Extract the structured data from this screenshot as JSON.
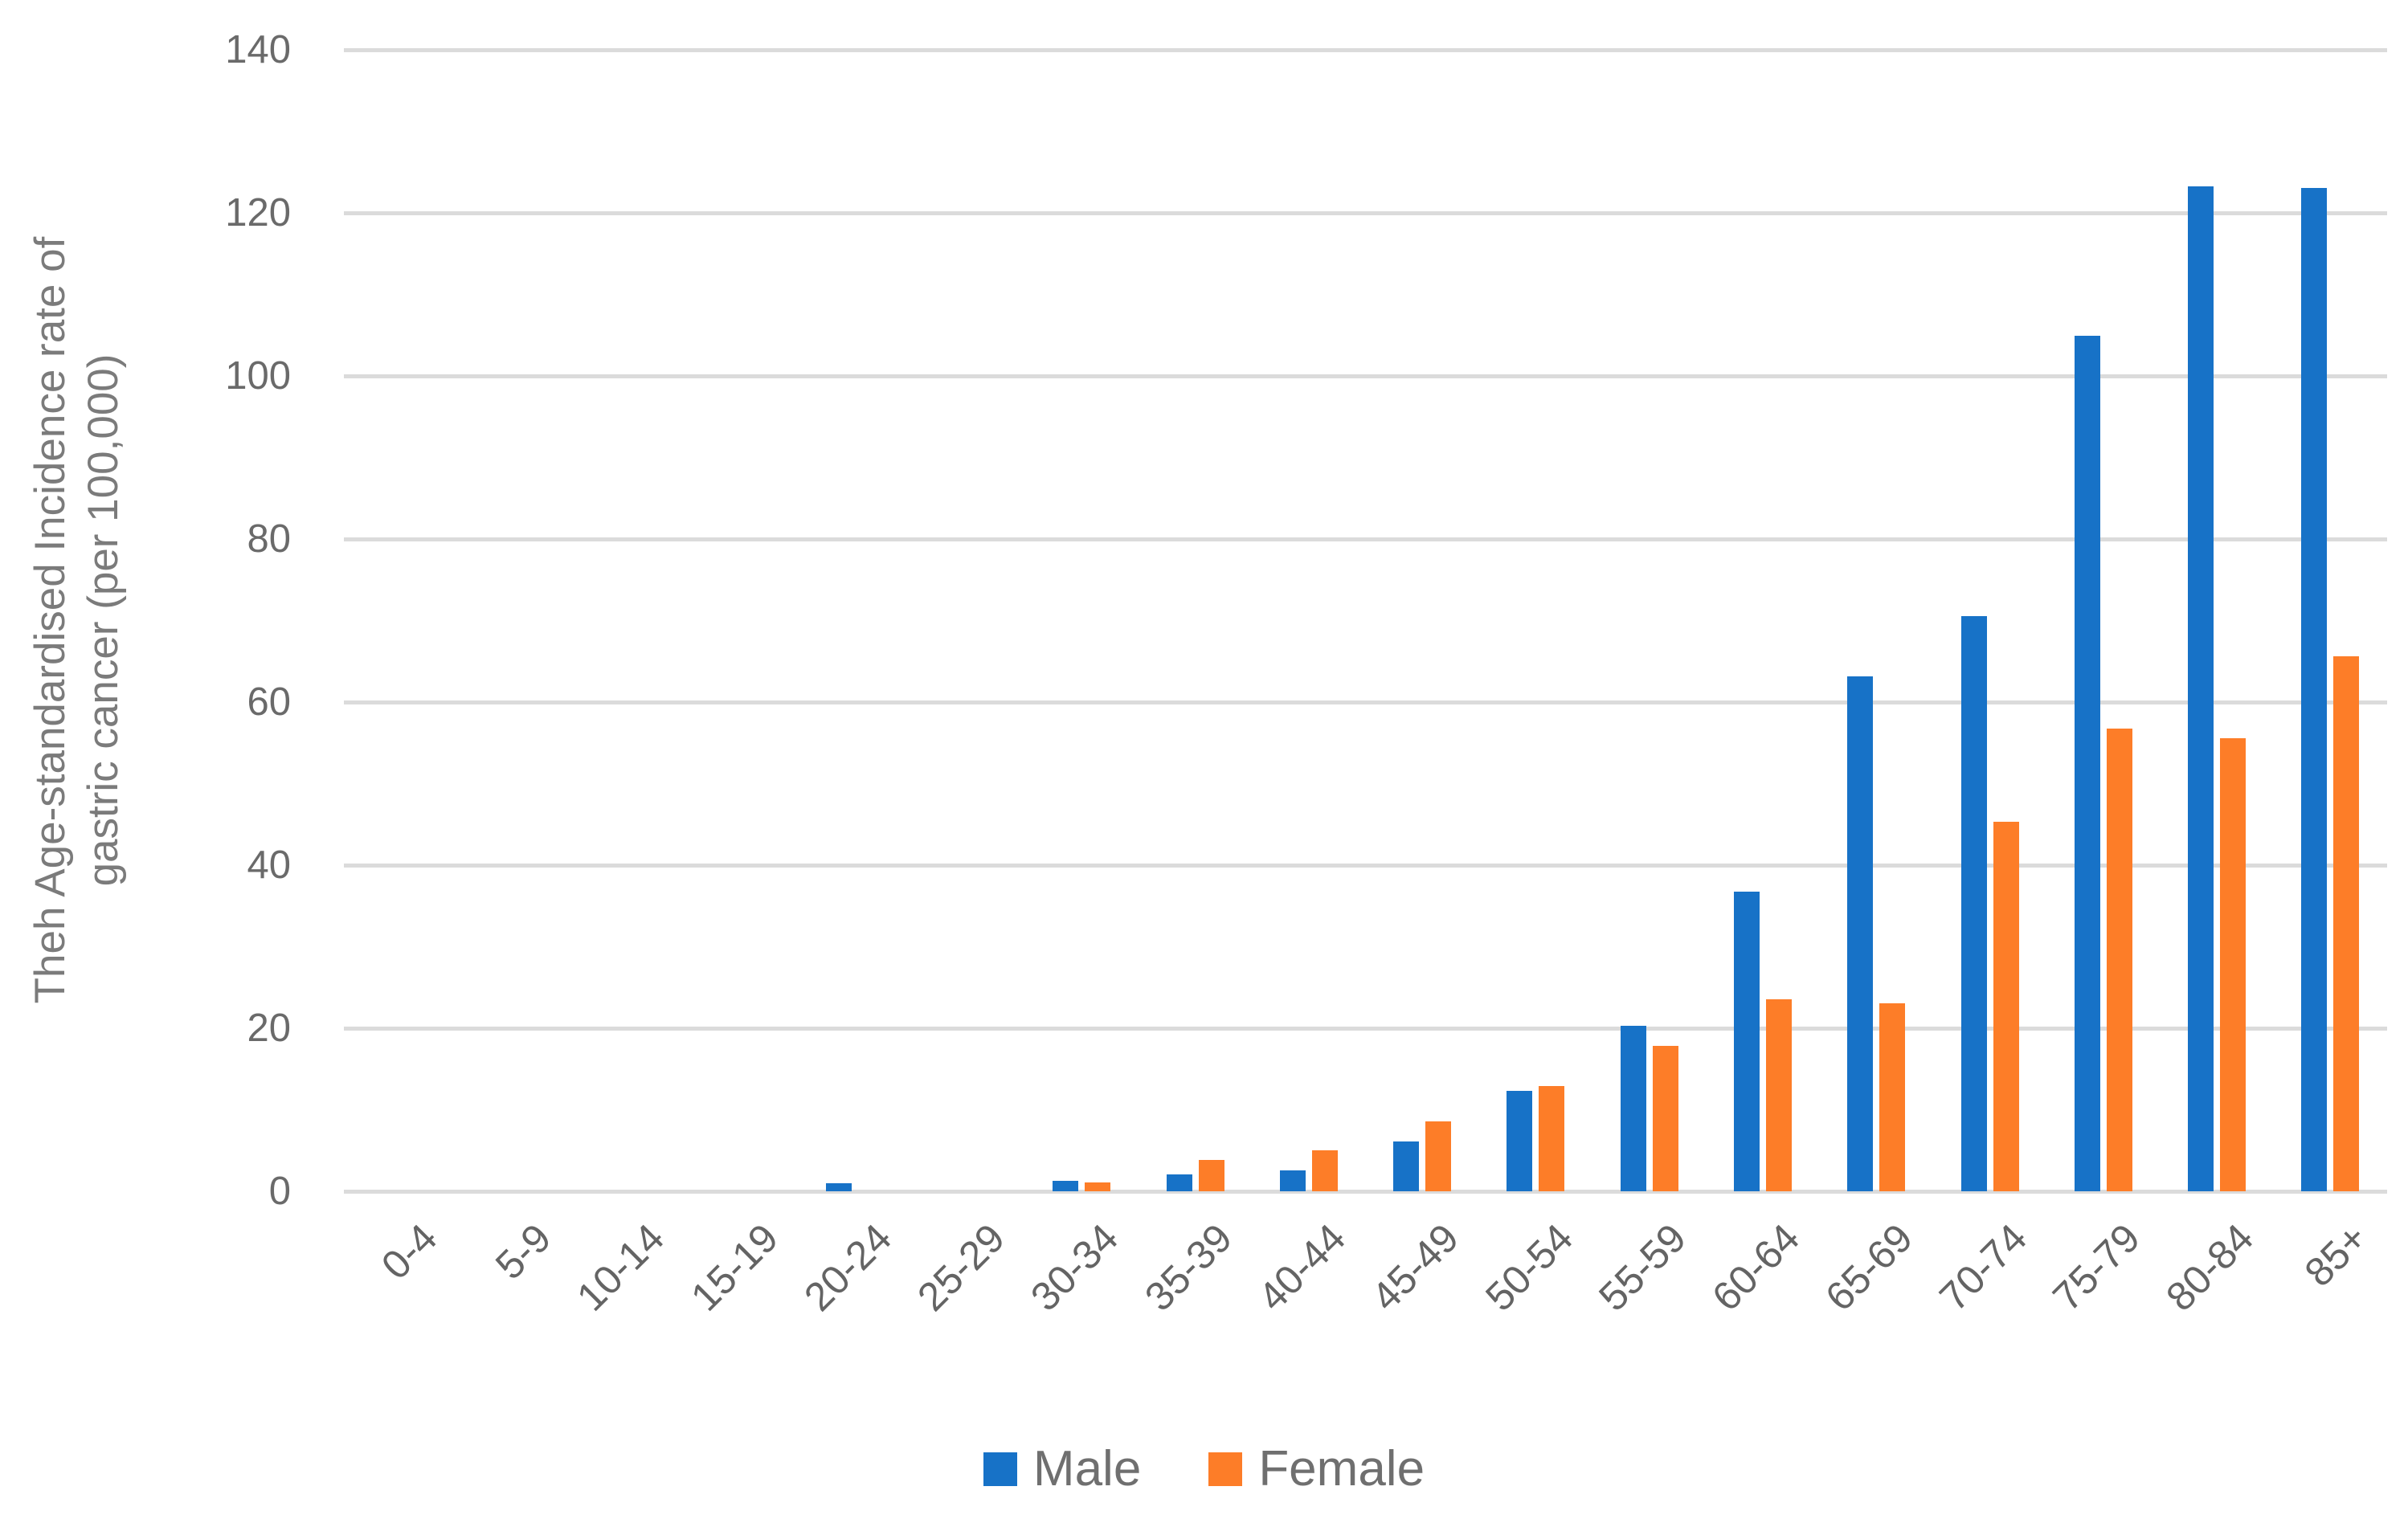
{
  "chart_data": {
    "type": "bar",
    "title": "",
    "ylabel_line1": "Theh Age-standardised Incidence rate of",
    "ylabel_line2": "gastric cancer (per 100,000)",
    "categories": [
      "0-4",
      "5-9",
      "10-14",
      "15-19",
      "20-24",
      "25-29",
      "30-34",
      "35-39",
      "40-44",
      "45-49",
      "50-54",
      "55-59",
      "60-64",
      "65-69",
      "70-74",
      "75-79",
      "80-84",
      "85+"
    ],
    "series": [
      {
        "name": "Male",
        "color": "#1772C7",
        "values": [
          0,
          0,
          0,
          0,
          1.0,
          0,
          1.3,
          2.1,
          2.6,
          6.1,
          12.3,
          20.3,
          36.7,
          63.2,
          70.5,
          104.9,
          123.3,
          123.1
        ]
      },
      {
        "name": "Female",
        "color": "#FD7D28",
        "values": [
          0,
          0,
          0,
          0,
          0,
          0,
          1.1,
          3.8,
          5.0,
          8.6,
          12.9,
          17.8,
          23.5,
          23.1,
          45.3,
          56.7,
          55.6,
          65.6
        ]
      }
    ],
    "ylim": [
      0,
      140
    ],
    "yticks": [
      0,
      20,
      40,
      60,
      80,
      100,
      120,
      140
    ],
    "grid": true,
    "gridline_color": "#DBDBDB",
    "axis_text_color": "#6A6A6A",
    "legend_position": "bottom"
  }
}
